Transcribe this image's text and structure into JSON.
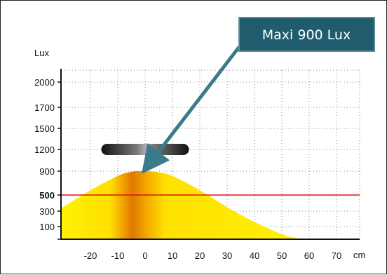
{
  "chart_data": {
    "type": "area",
    "ylabel": "Lux",
    "xlabel": "cm",
    "x_ticks": [
      -20,
      -10,
      0,
      10,
      20,
      30,
      40,
      50,
      60,
      70
    ],
    "y_ticks": [
      100,
      300,
      500,
      900,
      1200,
      1500,
      1700,
      2000
    ],
    "highlight_tick": 500,
    "reference_line": {
      "y": 500,
      "color": "#e01010"
    },
    "curve": {
      "x": [
        -30,
        -20,
        -10,
        -5,
        0,
        5,
        10,
        20,
        30,
        40,
        50,
        55,
        60
      ],
      "y": [
        350,
        580,
        820,
        890,
        900,
        880,
        820,
        580,
        350,
        160,
        40,
        10,
        0
      ],
      "fill_colors": [
        "#fff200",
        "#f2a400",
        "#e07800"
      ]
    },
    "annotation": {
      "text": "Maxi 900 Lux",
      "x": -1,
      "y": 900,
      "box_color": "#1f5c6e",
      "arrow_color": "#3a7a8a"
    },
    "lamp": {
      "x_start": -15,
      "x_end": 15,
      "y": 1200,
      "color": "#111111"
    }
  }
}
